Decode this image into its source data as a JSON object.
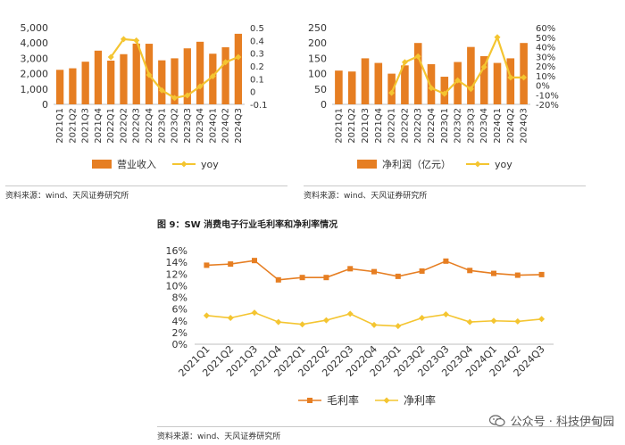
{
  "source_note_1": "资料来源：wind、天风证券研究所",
  "source_note_2": "资料来源：wind、天风证券研究所",
  "source_note_3": "资料来源：wind、天风证券研究所",
  "figure9_title": "图 9：SW 消费电子行业毛利率和净利率情况",
  "watermark": {
    "text": "公众号 · 科技伊甸园",
    "icon": "wechat-icon"
  },
  "colors": {
    "orange": "#e67e22",
    "yellow": "#f4c531",
    "axis": "#bfbfbf",
    "text": "#333333"
  },
  "chart_data": [
    {
      "type": "bar+line",
      "title": "",
      "categories": [
        "2021Q1",
        "2021Q2",
        "2021Q3",
        "2021Q4",
        "2022Q1",
        "2022Q2",
        "2022Q3",
        "2022Q4",
        "2023Q1",
        "2023Q2",
        "2023Q3",
        "2023Q4",
        "2024Q1",
        "2024Q2",
        "2024Q3"
      ],
      "series": [
        {
          "name": "营业收入",
          "type": "bar",
          "axis": "left",
          "values": [
            2250,
            2350,
            2780,
            3500,
            2850,
            3270,
            3960,
            3950,
            2870,
            3000,
            3650,
            4080,
            3300,
            3720,
            4600
          ]
        },
        {
          "name": "yoy",
          "type": "line",
          "axis": "right",
          "values": [
            null,
            null,
            null,
            null,
            0.27,
            0.41,
            0.4,
            0.13,
            0.01,
            -0.05,
            -0.03,
            0.04,
            0.12,
            0.23,
            0.27
          ]
        }
      ],
      "y_left": {
        "min": 0,
        "max": 5000,
        "ticks": [
          0,
          1000,
          2000,
          3000,
          4000,
          5000
        ],
        "tick_labels": [
          "0",
          "1,000",
          "2,000",
          "3,000",
          "4,000",
          "5,000"
        ]
      },
      "y_right": {
        "min": -0.1,
        "max": 0.5,
        "ticks": [
          -0.1,
          0,
          0.1,
          0.2,
          0.3,
          0.4,
          0.5
        ],
        "tick_labels": [
          "-0.1",
          "0",
          "0.1",
          "0.2",
          "0.3",
          "0.4",
          "0.5"
        ]
      },
      "legend": [
        "营业收入",
        "yoy"
      ],
      "legend_position": "bottom"
    },
    {
      "type": "bar+line",
      "title": "",
      "categories": [
        "2021Q1",
        "2021Q2",
        "2021Q3",
        "2021Q4",
        "2022Q1",
        "2022Q2",
        "2022Q3",
        "2022Q4",
        "2023Q1",
        "2023Q2",
        "2023Q3",
        "2023Q4",
        "2024Q1",
        "2024Q2",
        "2024Q3"
      ],
      "series": [
        {
          "name": "净利润（亿元）",
          "type": "bar",
          "axis": "left",
          "values": [
            110,
            107,
            150,
            135,
            100,
            127,
            200,
            131,
            90,
            138,
            187,
            157,
            135,
            150,
            200
          ]
        },
        {
          "name": "yoy",
          "type": "line",
          "axis": "right",
          "values": [
            null,
            null,
            null,
            null,
            -8,
            24,
            30,
            -3,
            -9,
            5,
            -4,
            19,
            50,
            8,
            8
          ]
        }
      ],
      "y_left": {
        "min": 0,
        "max": 250,
        "ticks": [
          0,
          50,
          100,
          150,
          200,
          250
        ],
        "tick_labels": [
          "0",
          "50",
          "100",
          "150",
          "200",
          "250"
        ]
      },
      "y_right": {
        "min": -20,
        "max": 60,
        "ticks": [
          -20,
          -10,
          0,
          10,
          20,
          30,
          40,
          50,
          60
        ],
        "tick_labels": [
          "-20%",
          "-10%",
          "0%",
          "10%",
          "20%",
          "30%",
          "40%",
          "50%",
          "60%"
        ]
      },
      "legend": [
        "净利润（亿元）",
        "yoy"
      ],
      "legend_position": "bottom"
    },
    {
      "type": "line",
      "title": "图 9：SW 消费电子行业毛利率和净利率情况",
      "categories": [
        "2021Q1",
        "2021Q2",
        "2021Q3",
        "2021Q4",
        "2022Q1",
        "2022Q2",
        "2022Q3",
        "2022Q4",
        "2023Q1",
        "2023Q2",
        "2023Q3",
        "2023Q4",
        "2024Q1",
        "2024Q2",
        "2024Q3"
      ],
      "series": [
        {
          "name": "毛利率",
          "values": [
            13.5,
            13.7,
            14.3,
            11.0,
            11.4,
            11.4,
            12.9,
            12.4,
            11.6,
            12.5,
            14.2,
            12.6,
            12.1,
            11.8,
            11.9
          ]
        },
        {
          "name": "净利率",
          "values": [
            4.9,
            4.5,
            5.4,
            3.8,
            3.4,
            4.1,
            5.2,
            3.3,
            3.1,
            4.5,
            5.1,
            3.8,
            4.0,
            3.9,
            4.3
          ]
        }
      ],
      "y": {
        "min": 0,
        "max": 16,
        "ticks": [
          0,
          2,
          4,
          6,
          8,
          10,
          12,
          14,
          16
        ],
        "tick_labels": [
          "0%",
          "2%",
          "4%",
          "6%",
          "8%",
          "10%",
          "12%",
          "14%",
          "16%"
        ]
      },
      "legend": [
        "毛利率",
        "净利率"
      ],
      "legend_position": "bottom"
    }
  ]
}
